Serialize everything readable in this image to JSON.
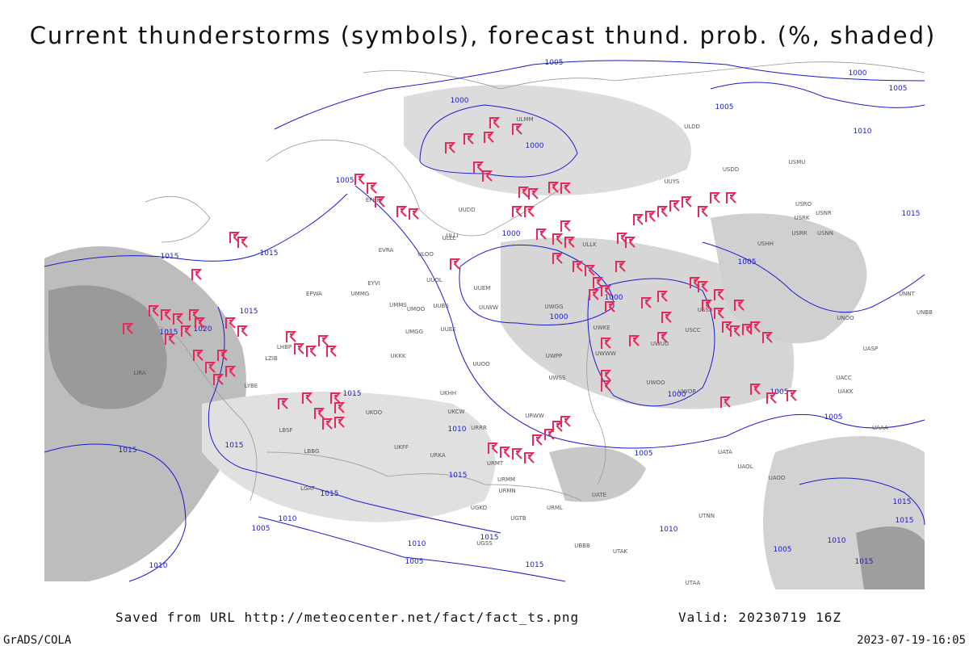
{
  "title": "Current thunderstorms (symbols), forecast thund. prob. (%, shaded)",
  "footer": {
    "url": "Saved from URL http://meteocenter.net/fact/fact_ts.png",
    "valid": "Valid: 20230719 16Z",
    "software": "GrADS/COLA",
    "timestamp": "2023-07-19-16:05"
  },
  "isobar_labels": [
    "1005",
    "1000",
    "1005",
    "1000",
    "1005",
    "1010",
    "1005",
    "1000",
    "1015",
    "1015",
    "1015",
    "1000",
    "1005",
    "1015",
    "1020",
    "1015",
    "1000",
    "1000",
    "1015",
    "1005",
    "1000",
    "1010",
    "1005",
    "1015",
    "1015",
    "1005",
    "1015",
    "1015",
    "1010",
    "1010",
    "1015",
    "1005",
    "1015",
    "1010",
    "1005",
    "1010",
    "1015",
    "1015",
    "1010",
    "1005",
    "1015"
  ],
  "stations": [
    "ULMM",
    "ULDD",
    "UUYS",
    "USDD",
    "USMU",
    "USRO",
    "USRK",
    "USNR",
    "USRR",
    "USNN",
    "USHH",
    "UNNT",
    "UNBB",
    "UNOO",
    "UASP",
    "UACC",
    "UAKK",
    "UAAA",
    "UATA",
    "UAOL",
    "UAOO",
    "UTNN",
    "UATE",
    "UTAK",
    "UTAA",
    "ULLI",
    "ULLK",
    "UUEM",
    "UUWW",
    "UWGG",
    "UWKE",
    "UWWW",
    "UWUU",
    "USCC",
    "USSS",
    "UWOO",
    "UWOR",
    "UUOO",
    "UWPP",
    "UWSS",
    "UKHH",
    "UKCW",
    "URRR",
    "URWW",
    "UKFF",
    "URKA",
    "URMT",
    "URMM",
    "URMN",
    "URML",
    "UGSS",
    "UGKO",
    "UGTB",
    "UBBB",
    "UKOO",
    "EPWA",
    "UMMG",
    "UMMS",
    "EYVI",
    "UMOO",
    "UMGG",
    "UUBS",
    "UUEE",
    "UUOL",
    "ULOO",
    "EVRA",
    "UKKK",
    "LZIB",
    "LHBP",
    "LIRA",
    "LYBE",
    "LBSF",
    "LBBG",
    "LGAT",
    "EFHK",
    "ULLL",
    "UUDD"
  ]
}
